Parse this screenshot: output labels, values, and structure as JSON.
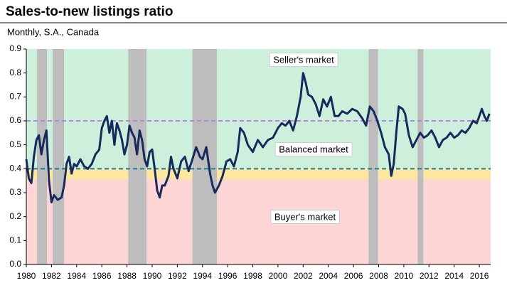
{
  "chart_data": {
    "type": "line",
    "title": "Sales-to-new listings ratio",
    "subtitle": "Monthly, S.A., Canada",
    "xlim": [
      1980,
      2016.9
    ],
    "xticks": [
      1980,
      1982,
      1984,
      1986,
      1988,
      1990,
      1992,
      1994,
      1996,
      1998,
      2000,
      2002,
      2004,
      2006,
      2008,
      2010,
      2012,
      2014,
      2016
    ],
    "ylim": [
      0,
      0.9
    ],
    "yticks": [
      {
        "value": 0,
        "label": "0.0"
      },
      0.1,
      0.2,
      0.3,
      0.4,
      0.5,
      0.6,
      0.7,
      0.8,
      0.9
    ],
    "zones": [
      {
        "from": 0.4,
        "to": 0.9,
        "color": "#cdf0dd"
      },
      {
        "from": 0.355,
        "to": 0.4,
        "color": "#fde7a0"
      },
      {
        "from": 0,
        "to": 0.355,
        "color": "#fdd5d5"
      }
    ],
    "reference_lines": [
      {
        "value": 0.6,
        "color": "#b48ad8"
      },
      {
        "value": 0.4,
        "color": "#1f7a8c"
      }
    ],
    "shaded_periods": [
      {
        "start": 1980.85,
        "end": 1981.64
      },
      {
        "start": 1982.1,
        "end": 1983.0
      },
      {
        "start": 1988.1,
        "end": 1989.55
      },
      {
        "start": 1993.2,
        "end": 1995.15
      },
      {
        "start": 2007.2,
        "end": 2007.95
      },
      {
        "start": 2011.1,
        "end": 2011.55
      }
    ],
    "shade_color": "#bdbdbd",
    "annotations": [
      "Seller's market",
      "Balanced market",
      "Buyer's market"
    ],
    "series": [
      {
        "color": "#172a5c",
        "x": [
          1980.0,
          1980.2,
          1980.4,
          1980.6,
          1980.8,
          1981.0,
          1981.2,
          1981.4,
          1981.6,
          1981.8,
          1982.0,
          1982.2,
          1982.5,
          1982.8,
          1983.0,
          1983.2,
          1983.4,
          1983.6,
          1983.8,
          1984.0,
          1984.3,
          1984.6,
          1984.9,
          1985.2,
          1985.5,
          1985.8,
          1986.0,
          1986.2,
          1986.4,
          1986.6,
          1986.8,
          1987.0,
          1987.2,
          1987.4,
          1987.6,
          1987.8,
          1988.0,
          1988.2,
          1988.4,
          1988.6,
          1988.8,
          1989.0,
          1989.2,
          1989.4,
          1989.6,
          1989.8,
          1990.0,
          1990.2,
          1990.4,
          1990.6,
          1990.8,
          1991.0,
          1991.3,
          1991.5,
          1991.7,
          1992.0,
          1992.3,
          1992.6,
          1992.9,
          1993.2,
          1993.5,
          1993.8,
          1994.0,
          1994.3,
          1994.6,
          1994.8,
          1995.0,
          1995.3,
          1995.6,
          1995.9,
          1996.2,
          1996.5,
          1996.8,
          1997.0,
          1997.3,
          1997.6,
          1998.0,
          1998.4,
          1998.8,
          1999.2,
          1999.6,
          2000.0,
          2000.3,
          2000.6,
          2000.9,
          2001.2,
          2001.5,
          2001.8,
          2002.0,
          2002.2,
          2002.4,
          2002.7,
          2003.0,
          2003.3,
          2003.6,
          2003.9,
          2004.2,
          2004.5,
          2004.8,
          2005.1,
          2005.5,
          2005.9,
          2006.3,
          2006.7,
          2007.0,
          2007.3,
          2007.6,
          2007.9,
          2008.2,
          2008.5,
          2008.8,
          2009.0,
          2009.2,
          2009.4,
          2009.6,
          2009.9,
          2010.1,
          2010.4,
          2010.7,
          2011.0,
          2011.3,
          2011.6,
          2011.9,
          2012.2,
          2012.5,
          2012.8,
          2013.1,
          2013.4,
          2013.7,
          2014.0,
          2014.3,
          2014.6,
          2014.9,
          2015.2,
          2015.5,
          2015.8,
          2016.0,
          2016.2,
          2016.4,
          2016.6,
          2016.8
        ],
        "values": [
          0.44,
          0.36,
          0.34,
          0.45,
          0.52,
          0.54,
          0.46,
          0.52,
          0.56,
          0.35,
          0.26,
          0.29,
          0.27,
          0.28,
          0.33,
          0.42,
          0.45,
          0.38,
          0.42,
          0.41,
          0.44,
          0.41,
          0.4,
          0.42,
          0.46,
          0.48,
          0.57,
          0.6,
          0.62,
          0.55,
          0.6,
          0.5,
          0.59,
          0.56,
          0.52,
          0.46,
          0.5,
          0.58,
          0.55,
          0.53,
          0.46,
          0.56,
          0.52,
          0.44,
          0.41,
          0.47,
          0.48,
          0.4,
          0.31,
          0.28,
          0.33,
          0.33,
          0.37,
          0.45,
          0.4,
          0.36,
          0.43,
          0.45,
          0.39,
          0.44,
          0.49,
          0.45,
          0.44,
          0.49,
          0.38,
          0.33,
          0.3,
          0.33,
          0.37,
          0.43,
          0.44,
          0.41,
          0.47,
          0.57,
          0.55,
          0.5,
          0.47,
          0.52,
          0.49,
          0.52,
          0.53,
          0.57,
          0.59,
          0.58,
          0.6,
          0.56,
          0.62,
          0.7,
          0.8,
          0.76,
          0.71,
          0.7,
          0.67,
          0.62,
          0.69,
          0.66,
          0.7,
          0.62,
          0.62,
          0.64,
          0.63,
          0.65,
          0.64,
          0.61,
          0.58,
          0.66,
          0.64,
          0.6,
          0.55,
          0.49,
          0.46,
          0.37,
          0.42,
          0.55,
          0.66,
          0.65,
          0.63,
          0.54,
          0.49,
          0.52,
          0.55,
          0.53,
          0.54,
          0.56,
          0.53,
          0.49,
          0.52,
          0.53,
          0.55,
          0.53,
          0.54,
          0.56,
          0.55,
          0.57,
          0.6,
          0.59,
          0.62,
          0.65,
          0.62,
          0.6,
          0.63
        ]
      }
    ]
  }
}
